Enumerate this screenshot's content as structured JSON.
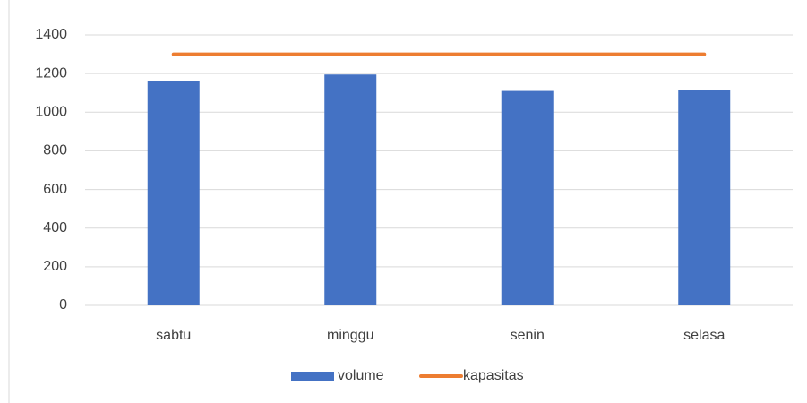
{
  "chart_data": {
    "type": "bar",
    "categories": [
      "sabtu",
      "minggu",
      "senin",
      "selasa"
    ],
    "series": [
      {
        "name": "volume",
        "type": "bar",
        "color": "#4472c4",
        "values": [
          1160,
          1195,
          1110,
          1115
        ]
      },
      {
        "name": "kapasitas",
        "type": "line",
        "color": "#ed7d31",
        "values": [
          1300,
          1300,
          1300,
          1300
        ]
      }
    ],
    "ylim": [
      0,
      1400
    ],
    "yticks": [
      0,
      200,
      400,
      600,
      800,
      1000,
      1200,
      1400
    ],
    "grid": true,
    "legend": "bottom"
  }
}
